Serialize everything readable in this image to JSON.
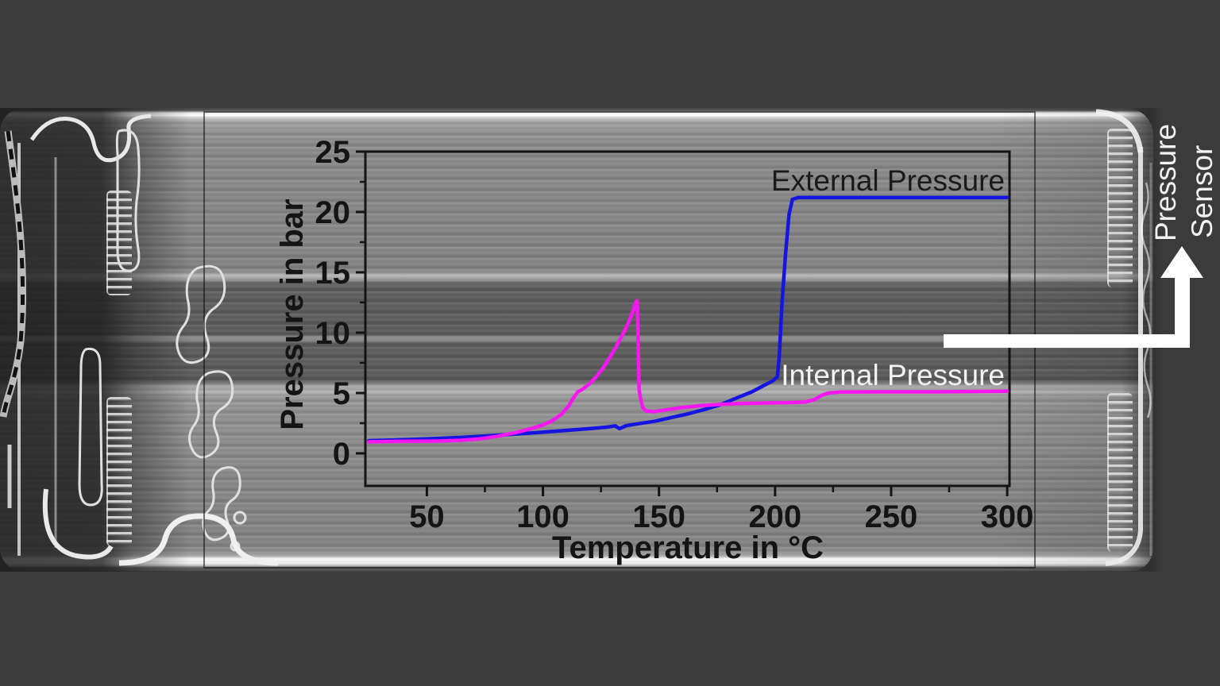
{
  "chart_data": {
    "type": "line",
    "title": "",
    "xlabel": "Temperature in °C",
    "ylabel": "Pressure in bar",
    "xlim": [
      23.5,
      301
    ],
    "ylim": [
      -2.7,
      25
    ],
    "x_ticks": [
      50,
      100,
      150,
      200,
      250,
      300
    ],
    "x_minor_step": 25,
    "y_ticks": [
      0,
      5,
      10,
      15,
      20,
      25
    ],
    "y_minor_step": 2.5,
    "grid": false,
    "legend_position": "labels-on-plot",
    "series": [
      {
        "name": "External Pressure",
        "color": "#1515e2",
        "label_color": "#1a1a1a",
        "points": [
          [
            25,
            1.05
          ],
          [
            35,
            1.1
          ],
          [
            50,
            1.2
          ],
          [
            65,
            1.32
          ],
          [
            80,
            1.5
          ],
          [
            95,
            1.68
          ],
          [
            110,
            1.9
          ],
          [
            122,
            2.08
          ],
          [
            128,
            2.18
          ],
          [
            131,
            2.28
          ],
          [
            133,
            2.05
          ],
          [
            136,
            2.3
          ],
          [
            141,
            2.45
          ],
          [
            148,
            2.65
          ],
          [
            155,
            2.95
          ],
          [
            162,
            3.25
          ],
          [
            169,
            3.6
          ],
          [
            176,
            4.0
          ],
          [
            183,
            4.55
          ],
          [
            190,
            5.1
          ],
          [
            196,
            5.7
          ],
          [
            199,
            6.0
          ],
          [
            201,
            6.35
          ],
          [
            201.8,
            8.0
          ],
          [
            203,
            12.5
          ],
          [
            204.5,
            16.5
          ],
          [
            206,
            19.8
          ],
          [
            207.5,
            21.05
          ],
          [
            210,
            21.2
          ],
          [
            240,
            21.2
          ],
          [
            270,
            21.2
          ],
          [
            300,
            21.2
          ]
        ]
      },
      {
        "name": "Internal Pressure",
        "color": "#f816f2",
        "label_color": "#f2f2f2",
        "points": [
          [
            25,
            0.95
          ],
          [
            40,
            1.0
          ],
          [
            55,
            1.02
          ],
          [
            65,
            1.08
          ],
          [
            73,
            1.2
          ],
          [
            80,
            1.4
          ],
          [
            88,
            1.7
          ],
          [
            95,
            2.05
          ],
          [
            100,
            2.35
          ],
          [
            104,
            2.7
          ],
          [
            108,
            3.25
          ],
          [
            111,
            3.9
          ],
          [
            113,
            4.55
          ],
          [
            115,
            5.1
          ],
          [
            117,
            5.3
          ],
          [
            120,
            5.75
          ],
          [
            123,
            6.35
          ],
          [
            126,
            7.1
          ],
          [
            129,
            8.0
          ],
          [
            132,
            9.0
          ],
          [
            135,
            10.1
          ],
          [
            137,
            10.9
          ],
          [
            139,
            11.9
          ],
          [
            140,
            12.55
          ],
          [
            140.6,
            12.65
          ],
          [
            141,
            9.5
          ],
          [
            141.4,
            5.3
          ],
          [
            142,
            4.6
          ],
          [
            143,
            3.8
          ],
          [
            144.5,
            3.5
          ],
          [
            148,
            3.45
          ],
          [
            153,
            3.6
          ],
          [
            160,
            3.8
          ],
          [
            168,
            3.95
          ],
          [
            176,
            4.05
          ],
          [
            185,
            4.12
          ],
          [
            195,
            4.17
          ],
          [
            205,
            4.2
          ],
          [
            213,
            4.25
          ],
          [
            217,
            4.45
          ],
          [
            220,
            4.8
          ],
          [
            223,
            5.0
          ],
          [
            228,
            5.08
          ],
          [
            245,
            5.1
          ],
          [
            270,
            5.1
          ],
          [
            300,
            5.15
          ]
        ]
      }
    ]
  },
  "annotations": {
    "pressure_sensor_line1": "Pressure",
    "pressure_sensor_line2": "Sensor",
    "arrow_color": "#ffffff"
  },
  "colors": {
    "background_dark": "#3b3b3b",
    "cell_gray": "#8a8a8a",
    "axis_ink": "#141414",
    "external_curve": "#1515e2",
    "internal_curve": "#f816f2",
    "white_text": "#f2f2f2"
  }
}
